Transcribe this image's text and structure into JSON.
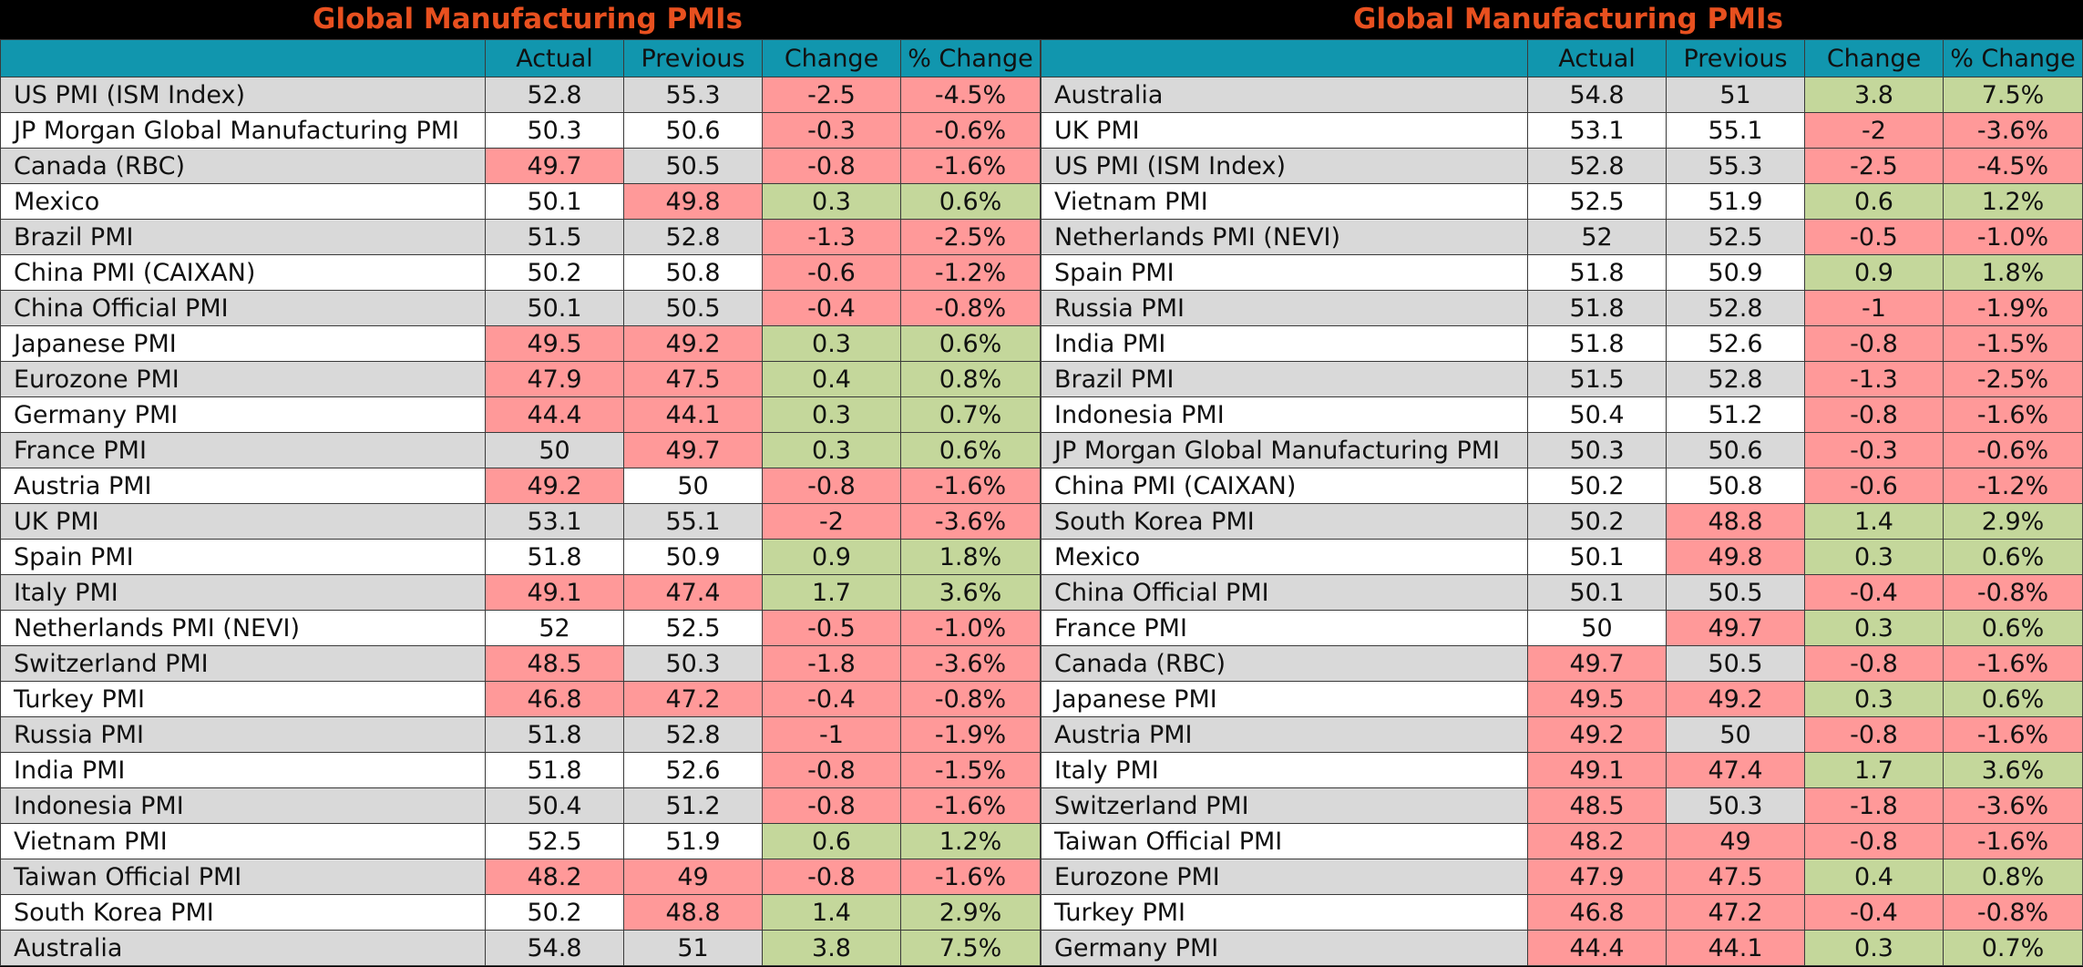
{
  "left": {
    "title": "Global Manufacturing PMIs",
    "headers": [
      "",
      "Actual",
      "Previous",
      "Change",
      "% Change"
    ],
    "rows": [
      {
        "name": "US PMI (ISM Index)",
        "actual": "52.8",
        "previous": "55.3",
        "change": "-2.5",
        "pct": "-4.5%",
        "ca": "",
        "cp": "",
        "cc": "red",
        "cpct": "red"
      },
      {
        "name": "JP Morgan Global Manufacturing PMI",
        "actual": "50.3",
        "previous": "50.6",
        "change": "-0.3",
        "pct": "-0.6%",
        "ca": "",
        "cp": "",
        "cc": "red",
        "cpct": "red"
      },
      {
        "name": "Canada (RBC)",
        "actual": "49.7",
        "previous": "50.5",
        "change": "-0.8",
        "pct": "-1.6%",
        "ca": "red",
        "cp": "",
        "cc": "red",
        "cpct": "red"
      },
      {
        "name": "Mexico",
        "actual": "50.1",
        "previous": "49.8",
        "change": "0.3",
        "pct": "0.6%",
        "ca": "",
        "cp": "red",
        "cc": "green",
        "cpct": "green"
      },
      {
        "name": "Brazil PMI",
        "actual": "51.5",
        "previous": "52.8",
        "change": "-1.3",
        "pct": "-2.5%",
        "ca": "",
        "cp": "",
        "cc": "red",
        "cpct": "red"
      },
      {
        "name": "China PMI (CAIXAN)",
        "actual": "50.2",
        "previous": "50.8",
        "change": "-0.6",
        "pct": "-1.2%",
        "ca": "",
        "cp": "",
        "cc": "red",
        "cpct": "red"
      },
      {
        "name": "China Official PMI",
        "actual": "50.1",
        "previous": "50.5",
        "change": "-0.4",
        "pct": "-0.8%",
        "ca": "",
        "cp": "",
        "cc": "red",
        "cpct": "red"
      },
      {
        "name": "Japanese PMI",
        "actual": "49.5",
        "previous": "49.2",
        "change": "0.3",
        "pct": "0.6%",
        "ca": "red",
        "cp": "red",
        "cc": "green",
        "cpct": "green"
      },
      {
        "name": "Eurozone PMI",
        "actual": "47.9",
        "previous": "47.5",
        "change": "0.4",
        "pct": "0.8%",
        "ca": "red",
        "cp": "red",
        "cc": "green",
        "cpct": "green"
      },
      {
        "name": "Germany PMI",
        "actual": "44.4",
        "previous": "44.1",
        "change": "0.3",
        "pct": "0.7%",
        "ca": "red",
        "cp": "red",
        "cc": "green",
        "cpct": "green"
      },
      {
        "name": "France PMI",
        "actual": "50",
        "previous": "49.7",
        "change": "0.3",
        "pct": "0.6%",
        "ca": "",
        "cp": "red",
        "cc": "green",
        "cpct": "green"
      },
      {
        "name": "Austria PMI",
        "actual": "49.2",
        "previous": "50",
        "change": "-0.8",
        "pct": "-1.6%",
        "ca": "red",
        "cp": "",
        "cc": "red",
        "cpct": "red"
      },
      {
        "name": "UK PMI",
        "actual": "53.1",
        "previous": "55.1",
        "change": "-2",
        "pct": "-3.6%",
        "ca": "",
        "cp": "",
        "cc": "red",
        "cpct": "red"
      },
      {
        "name": "Spain PMI",
        "actual": "51.8",
        "previous": "50.9",
        "change": "0.9",
        "pct": "1.8%",
        "ca": "",
        "cp": "",
        "cc": "green",
        "cpct": "green"
      },
      {
        "name": "Italy PMI",
        "actual": "49.1",
        "previous": "47.4",
        "change": "1.7",
        "pct": "3.6%",
        "ca": "red",
        "cp": "red",
        "cc": "green",
        "cpct": "green"
      },
      {
        "name": "Netherlands PMI (NEVI)",
        "actual": "52",
        "previous": "52.5",
        "change": "-0.5",
        "pct": "-1.0%",
        "ca": "",
        "cp": "",
        "cc": "red",
        "cpct": "red"
      },
      {
        "name": "Switzerland PMI",
        "actual": "48.5",
        "previous": "50.3",
        "change": "-1.8",
        "pct": "-3.6%",
        "ca": "red",
        "cp": "",
        "cc": "red",
        "cpct": "red"
      },
      {
        "name": "Turkey PMI",
        "actual": "46.8",
        "previous": "47.2",
        "change": "-0.4",
        "pct": "-0.8%",
        "ca": "red",
        "cp": "red",
        "cc": "red",
        "cpct": "red"
      },
      {
        "name": "Russia PMI",
        "actual": "51.8",
        "previous": "52.8",
        "change": "-1",
        "pct": "-1.9%",
        "ca": "",
        "cp": "",
        "cc": "red",
        "cpct": "red"
      },
      {
        "name": "India PMI",
        "actual": "51.8",
        "previous": "52.6",
        "change": "-0.8",
        "pct": "-1.5%",
        "ca": "",
        "cp": "",
        "cc": "red",
        "cpct": "red"
      },
      {
        "name": "Indonesia PMI",
        "actual": "50.4",
        "previous": "51.2",
        "change": "-0.8",
        "pct": "-1.6%",
        "ca": "",
        "cp": "",
        "cc": "red",
        "cpct": "red"
      },
      {
        "name": "Vietnam PMI",
        "actual": "52.5",
        "previous": "51.9",
        "change": "0.6",
        "pct": "1.2%",
        "ca": "",
        "cp": "",
        "cc": "green",
        "cpct": "green"
      },
      {
        "name": "Taiwan Official PMI",
        "actual": "48.2",
        "previous": "49",
        "change": "-0.8",
        "pct": "-1.6%",
        "ca": "red",
        "cp": "red",
        "cc": "red",
        "cpct": "red"
      },
      {
        "name": "South Korea PMI",
        "actual": "50.2",
        "previous": "48.8",
        "change": "1.4",
        "pct": "2.9%",
        "ca": "",
        "cp": "red",
        "cc": "green",
        "cpct": "green"
      },
      {
        "name": "Australia",
        "actual": "54.8",
        "previous": "51",
        "change": "3.8",
        "pct": "7.5%",
        "ca": "",
        "cp": "",
        "cc": "green",
        "cpct": "green"
      }
    ]
  },
  "right": {
    "title": "Global Manufacturing PMIs",
    "headers": [
      "",
      "Actual",
      "Previous",
      "Change",
      "% Change"
    ],
    "rows": [
      {
        "name": "Australia",
        "actual": "54.8",
        "previous": "51",
        "change": "3.8",
        "pct": "7.5%",
        "ca": "",
        "cp": "",
        "cc": "green",
        "cpct": "green"
      },
      {
        "name": "UK PMI",
        "actual": "53.1",
        "previous": "55.1",
        "change": "-2",
        "pct": "-3.6%",
        "ca": "",
        "cp": "",
        "cc": "red",
        "cpct": "red"
      },
      {
        "name": "US PMI (ISM Index)",
        "actual": "52.8",
        "previous": "55.3",
        "change": "-2.5",
        "pct": "-4.5%",
        "ca": "",
        "cp": "",
        "cc": "red",
        "cpct": "red"
      },
      {
        "name": "Vietnam PMI",
        "actual": "52.5",
        "previous": "51.9",
        "change": "0.6",
        "pct": "1.2%",
        "ca": "",
        "cp": "",
        "cc": "green",
        "cpct": "green"
      },
      {
        "name": "Netherlands PMI (NEVI)",
        "actual": "52",
        "previous": "52.5",
        "change": "-0.5",
        "pct": "-1.0%",
        "ca": "",
        "cp": "",
        "cc": "red",
        "cpct": "red"
      },
      {
        "name": "Spain PMI",
        "actual": "51.8",
        "previous": "50.9",
        "change": "0.9",
        "pct": "1.8%",
        "ca": "",
        "cp": "",
        "cc": "green",
        "cpct": "green"
      },
      {
        "name": "Russia PMI",
        "actual": "51.8",
        "previous": "52.8",
        "change": "-1",
        "pct": "-1.9%",
        "ca": "",
        "cp": "",
        "cc": "red",
        "cpct": "red"
      },
      {
        "name": "India PMI",
        "actual": "51.8",
        "previous": "52.6",
        "change": "-0.8",
        "pct": "-1.5%",
        "ca": "",
        "cp": "",
        "cc": "red",
        "cpct": "red"
      },
      {
        "name": "Brazil PMI",
        "actual": "51.5",
        "previous": "52.8",
        "change": "-1.3",
        "pct": "-2.5%",
        "ca": "",
        "cp": "",
        "cc": "red",
        "cpct": "red"
      },
      {
        "name": "Indonesia PMI",
        "actual": "50.4",
        "previous": "51.2",
        "change": "-0.8",
        "pct": "-1.6%",
        "ca": "",
        "cp": "",
        "cc": "red",
        "cpct": "red"
      },
      {
        "name": "JP Morgan Global Manufacturing PMI",
        "actual": "50.3",
        "previous": "50.6",
        "change": "-0.3",
        "pct": "-0.6%",
        "ca": "",
        "cp": "",
        "cc": "red",
        "cpct": "red"
      },
      {
        "name": "China PMI (CAIXAN)",
        "actual": "50.2",
        "previous": "50.8",
        "change": "-0.6",
        "pct": "-1.2%",
        "ca": "",
        "cp": "",
        "cc": "red",
        "cpct": "red"
      },
      {
        "name": "South Korea PMI",
        "actual": "50.2",
        "previous": "48.8",
        "change": "1.4",
        "pct": "2.9%",
        "ca": "",
        "cp": "red",
        "cc": "green",
        "cpct": "green"
      },
      {
        "name": "Mexico",
        "actual": "50.1",
        "previous": "49.8",
        "change": "0.3",
        "pct": "0.6%",
        "ca": "",
        "cp": "red",
        "cc": "green",
        "cpct": "green"
      },
      {
        "name": "China Official PMI",
        "actual": "50.1",
        "previous": "50.5",
        "change": "-0.4",
        "pct": "-0.8%",
        "ca": "",
        "cp": "",
        "cc": "red",
        "cpct": "red"
      },
      {
        "name": "France PMI",
        "actual": "50",
        "previous": "49.7",
        "change": "0.3",
        "pct": "0.6%",
        "ca": "",
        "cp": "red",
        "cc": "green",
        "cpct": "green"
      },
      {
        "name": "Canada (RBC)",
        "actual": "49.7",
        "previous": "50.5",
        "change": "-0.8",
        "pct": "-1.6%",
        "ca": "red",
        "cp": "",
        "cc": "red",
        "cpct": "red"
      },
      {
        "name": "Japanese PMI",
        "actual": "49.5",
        "previous": "49.2",
        "change": "0.3",
        "pct": "0.6%",
        "ca": "red",
        "cp": "red",
        "cc": "green",
        "cpct": "green"
      },
      {
        "name": "Austria PMI",
        "actual": "49.2",
        "previous": "50",
        "change": "-0.8",
        "pct": "-1.6%",
        "ca": "red",
        "cp": "",
        "cc": "red",
        "cpct": "red"
      },
      {
        "name": "Italy PMI",
        "actual": "49.1",
        "previous": "47.4",
        "change": "1.7",
        "pct": "3.6%",
        "ca": "red",
        "cp": "red",
        "cc": "green",
        "cpct": "green"
      },
      {
        "name": "Switzerland PMI",
        "actual": "48.5",
        "previous": "50.3",
        "change": "-1.8",
        "pct": "-3.6%",
        "ca": "red",
        "cp": "",
        "cc": "red",
        "cpct": "red"
      },
      {
        "name": "Taiwan Official PMI",
        "actual": "48.2",
        "previous": "49",
        "change": "-0.8",
        "pct": "-1.6%",
        "ca": "red",
        "cp": "red",
        "cc": "red",
        "cpct": "red"
      },
      {
        "name": "Eurozone PMI",
        "actual": "47.9",
        "previous": "47.5",
        "change": "0.4",
        "pct": "0.8%",
        "ca": "red",
        "cp": "red",
        "cc": "green",
        "cpct": "green"
      },
      {
        "name": "Turkey PMI",
        "actual": "46.8",
        "previous": "47.2",
        "change": "-0.4",
        "pct": "-0.8%",
        "ca": "red",
        "cp": "red",
        "cc": "red",
        "cpct": "red"
      },
      {
        "name": "Germany PMI",
        "actual": "44.4",
        "previous": "44.1",
        "change": "0.3",
        "pct": "0.7%",
        "ca": "red",
        "cp": "red",
        "cc": "green",
        "cpct": "green"
      }
    ]
  },
  "colors": {
    "title": "#e8501f",
    "header": "#1196ae",
    "negative": "#ff9999",
    "positive": "#c4d79b",
    "row_alt": "#d9d9d9"
  }
}
